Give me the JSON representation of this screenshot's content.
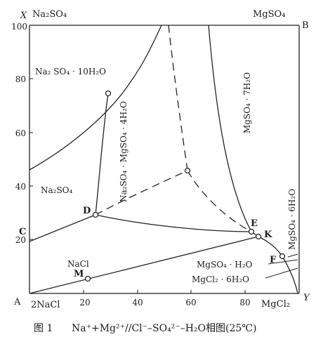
{
  "diagram": {
    "axis": {
      "y_name": "X",
      "x_name": "Y",
      "y_ticks": [
        "20",
        "40",
        "60",
        "80",
        "100"
      ],
      "x_ticks": [
        "20",
        "40",
        "60",
        "80"
      ]
    },
    "corners": {
      "top_left": "Na₂SO₄",
      "top_right": "MgSO₄",
      "top_right_letter": "B",
      "bottom_left_letter": "A",
      "bottom_left": "2NaCl",
      "bottom_right": "MgCl₂"
    },
    "phases": {
      "na2so4_10h2o": "Na₂ SO₄ · 10H₂O",
      "na2so4": "Na₂SO₄",
      "astrakanite": "Na₂SO₄ · MgSO₄ · 4H₂O",
      "mgso4_7h2o": "MgSO₄ · 7H₂O",
      "mgso4_6h2o": "MgSO₄ · 6H₂O",
      "nacl": "NaCl",
      "mgso4_h2o": "MgSO₄ · H₂O",
      "mgcl2_6h2o": "MgCl₂ · 6H₂O"
    },
    "points": {
      "C": "C",
      "D": "D",
      "E": "E",
      "K": "K",
      "F": "F",
      "M": "M"
    }
  },
  "caption": {
    "figure": "图 1",
    "system": "Na⁺+Mg²⁺//Cl⁻–SO₄²⁻–H₂O相图(25℃)"
  }
}
